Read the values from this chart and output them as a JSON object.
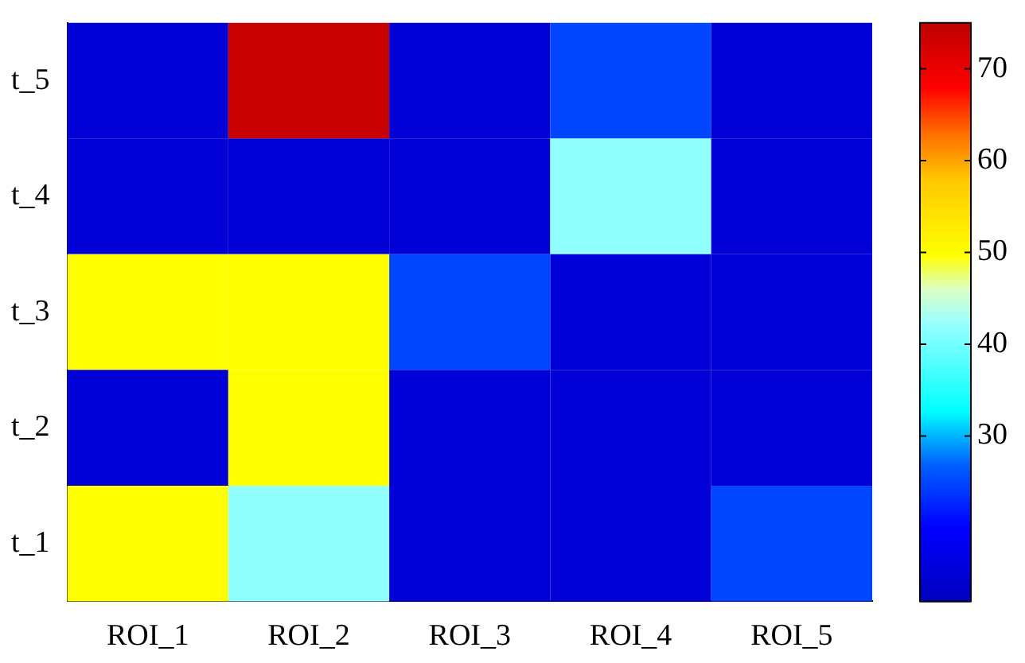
{
  "chart_data": {
    "type": "heatmap",
    "categories": [
      "ROI_1",
      "ROI_2",
      "ROI_3",
      "ROI_4",
      "ROI_5"
    ],
    "y_categories": [
      "t_5",
      "t_4",
      "t_3",
      "t_2",
      "t_1"
    ],
    "cells": [
      [
        15,
        74,
        15,
        25,
        15
      ],
      [
        15,
        15,
        15,
        42,
        15
      ],
      [
        50,
        50,
        25,
        15,
        15
      ],
      [
        15,
        50,
        15,
        15,
        15
      ],
      [
        50,
        42,
        15,
        15,
        25
      ]
    ],
    "clim": [
      12,
      75
    ],
    "cticks": [
      30,
      40,
      50,
      60,
      70
    ]
  }
}
